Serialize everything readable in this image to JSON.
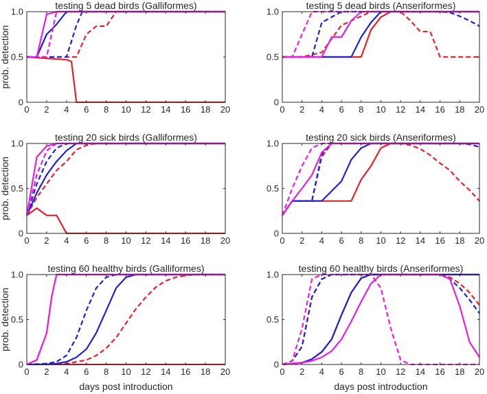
{
  "figure": {
    "xlabel": "days post introduction",
    "ylabel": "prob. detection"
  },
  "chart_data": [
    {
      "type": "line",
      "title": "testing 5 dead birds (Galliformes)",
      "xlabel": "",
      "ylabel": "prob. detection",
      "xlim": [
        0,
        20
      ],
      "ylim": [
        0,
        1
      ],
      "xticks": [
        "0",
        "2",
        "4",
        "6",
        "8",
        "10",
        "12",
        "14",
        "16",
        "18",
        "20"
      ],
      "yticks": [
        "0",
        "0.5",
        "1.0"
      ],
      "series": [
        {
          "color": "#e8202a",
          "dash": false,
          "x": [
            0,
            4,
            4.5,
            5,
            20
          ],
          "y": [
            0.5,
            0.47,
            0.45,
            0,
            0
          ]
        },
        {
          "color": "#e8202a",
          "dash": true,
          "x": [
            0,
            4,
            5,
            6,
            7,
            8,
            9,
            20
          ],
          "y": [
            0.5,
            0.5,
            0.5,
            0.75,
            0.84,
            0.84,
            1,
            1
          ]
        },
        {
          "color": "#1f1fd6",
          "dash": false,
          "x": [
            0,
            1,
            2,
            3,
            4,
            20
          ],
          "y": [
            0.5,
            0.5,
            0.75,
            0.86,
            1,
            1
          ]
        },
        {
          "color": "#1f1fd6",
          "dash": true,
          "x": [
            0,
            3,
            4,
            5,
            5.6,
            20
          ],
          "y": [
            0.5,
            0.5,
            0.5,
            0.85,
            1,
            1
          ]
        },
        {
          "color": "#e81ee0",
          "dash": false,
          "x": [
            0,
            1,
            2,
            3,
            20
          ],
          "y": [
            0.5,
            0.5,
            0.97,
            1,
            1
          ]
        },
        {
          "color": "#e81ee0",
          "dash": true,
          "x": [
            0,
            2,
            2.5,
            3,
            20
          ],
          "y": [
            0.5,
            0.5,
            0.75,
            1,
            1
          ]
        }
      ]
    },
    {
      "type": "line",
      "title": "testing 5 dead birds (Anseriformes)",
      "xlabel": "",
      "ylabel": "",
      "xlim": [
        0,
        20
      ],
      "ylim": [
        0,
        1
      ],
      "xticks": [
        "0",
        "2",
        "4",
        "6",
        "8",
        "10",
        "12",
        "14",
        "16",
        "18",
        "20"
      ],
      "yticks": [
        "0",
        "0.5",
        "1.0"
      ],
      "series": [
        {
          "color": "#e8202a",
          "dash": false,
          "x": [
            0,
            8,
            9,
            10,
            11,
            20
          ],
          "y": [
            0.5,
            0.5,
            0.8,
            0.94,
            1,
            1
          ]
        },
        {
          "color": "#e8202a",
          "dash": true,
          "x": [
            0,
            2,
            4,
            6,
            8,
            9,
            10,
            11,
            12,
            13,
            14,
            15,
            16,
            17,
            18,
            19,
            20
          ],
          "y": [
            0.5,
            0.5,
            0.55,
            0.85,
            0.95,
            1,
            1,
            1,
            1,
            0.9,
            0.78,
            0.78,
            0.5,
            0.5,
            0.5,
            0.5,
            0.5
          ]
        },
        {
          "color": "#1f1fd6",
          "dash": false,
          "x": [
            0,
            7,
            8,
            9,
            10,
            20
          ],
          "y": [
            0.5,
            0.5,
            0.72,
            0.88,
            1,
            1
          ]
        },
        {
          "color": "#1f1fd6",
          "dash": true,
          "x": [
            0,
            3,
            4,
            5,
            6,
            8,
            10,
            16,
            17,
            18,
            19,
            20
          ],
          "y": [
            0.5,
            0.5,
            0.88,
            0.94,
            1,
            1,
            1,
            1,
            0.99,
            0.95,
            0.9,
            0.84
          ]
        },
        {
          "color": "#e81ee0",
          "dash": false,
          "x": [
            0,
            4,
            5,
            6,
            7,
            8,
            9,
            20
          ],
          "y": [
            0.5,
            0.5,
            0.72,
            0.72,
            0.9,
            1,
            1,
            1
          ]
        },
        {
          "color": "#e81ee0",
          "dash": true,
          "x": [
            0,
            1,
            2,
            3,
            20
          ],
          "y": [
            0.5,
            0.5,
            0.75,
            1,
            1
          ]
        }
      ]
    },
    {
      "type": "line",
      "title": "testing 20 sick birds (Galliformes)",
      "xlabel": "",
      "ylabel": "prob. detection",
      "xlim": [
        0,
        20
      ],
      "ylim": [
        0,
        1
      ],
      "xticks": [
        "0",
        "2",
        "4",
        "6",
        "8",
        "10",
        "12",
        "14",
        "16",
        "18",
        "20"
      ],
      "yticks": [
        "0",
        "0.5",
        "1.0"
      ],
      "series": [
        {
          "color": "#e8202a",
          "dash": false,
          "x": [
            0,
            1,
            2,
            3,
            4,
            20
          ],
          "y": [
            0.2,
            0.28,
            0.2,
            0.2,
            0,
            0
          ]
        },
        {
          "color": "#e8202a",
          "dash": true,
          "x": [
            0,
            1,
            2,
            3,
            4,
            5,
            6,
            7,
            20
          ],
          "y": [
            0.2,
            0.4,
            0.55,
            0.7,
            0.8,
            0.93,
            0.98,
            1,
            1
          ]
        },
        {
          "color": "#1f1fd6",
          "dash": false,
          "x": [
            0,
            1,
            2,
            3,
            4,
            5,
            6,
            20
          ],
          "y": [
            0.2,
            0.45,
            0.65,
            0.8,
            0.92,
            1,
            1,
            1
          ]
        },
        {
          "color": "#1f1fd6",
          "dash": true,
          "x": [
            0,
            1,
            2,
            3,
            4,
            20
          ],
          "y": [
            0.2,
            0.55,
            0.8,
            0.95,
            1,
            1
          ]
        },
        {
          "color": "#e81ee0",
          "dash": false,
          "x": [
            0,
            1,
            2,
            3,
            20
          ],
          "y": [
            0.2,
            0.85,
            0.97,
            1,
            1
          ]
        },
        {
          "color": "#e81ee0",
          "dash": true,
          "x": [
            0,
            1,
            2,
            3,
            20
          ],
          "y": [
            0.2,
            0.65,
            0.92,
            1,
            1
          ]
        }
      ]
    },
    {
      "type": "line",
      "title": "testing 20 sick birds (Anseriformes)",
      "xlabel": "",
      "ylabel": "",
      "xlim": [
        0,
        20
      ],
      "ylim": [
        0,
        1
      ],
      "xticks": [
        "0",
        "2",
        "4",
        "6",
        "8",
        "10",
        "12",
        "14",
        "16",
        "18",
        "20"
      ],
      "yticks": [
        "0",
        "0.5",
        "1.0"
      ],
      "series": [
        {
          "color": "#e8202a",
          "dash": false,
          "x": [
            0,
            1,
            7,
            8,
            9,
            10,
            11,
            20
          ],
          "y": [
            0.2,
            0.36,
            0.36,
            0.6,
            0.75,
            0.95,
            1,
            1
          ]
        },
        {
          "color": "#e8202a",
          "dash": true,
          "x": [
            0,
            1,
            3,
            4,
            5,
            6,
            12,
            13,
            14,
            15,
            16,
            17,
            18,
            19,
            20
          ],
          "y": [
            0.2,
            0.36,
            0.36,
            0.85,
            1,
            1,
            1,
            0.98,
            0.94,
            0.87,
            0.78,
            0.7,
            0.58,
            0.48,
            0.36
          ]
        },
        {
          "color": "#1f1fd6",
          "dash": false,
          "x": [
            0,
            1,
            4,
            5,
            6,
            7,
            8,
            9,
            20
          ],
          "y": [
            0.2,
            0.36,
            0.36,
            0.47,
            0.58,
            0.82,
            0.95,
            1,
            1
          ]
        },
        {
          "color": "#1f1fd6",
          "dash": true,
          "x": [
            0,
            1,
            3,
            4,
            5,
            6,
            18,
            19,
            20
          ],
          "y": [
            0.2,
            0.36,
            0.36,
            0.88,
            1,
            1,
            1,
            0.99,
            0.96
          ]
        },
        {
          "color": "#e81ee0",
          "dash": false,
          "x": [
            0,
            1,
            2,
            3,
            4,
            5,
            20
          ],
          "y": [
            0.2,
            0.36,
            0.5,
            0.65,
            0.9,
            1,
            1
          ]
        },
        {
          "color": "#e81ee0",
          "dash": true,
          "x": [
            0,
            1,
            2,
            3,
            4,
            20
          ],
          "y": [
            0.2,
            0.5,
            0.75,
            0.95,
            1,
            1
          ]
        }
      ]
    },
    {
      "type": "line",
      "title": "testing 60 healthy birds (Galliformes)",
      "xlabel": "days post introduction",
      "ylabel": "prob. detection",
      "xlim": [
        0,
        20
      ],
      "ylim": [
        0,
        1
      ],
      "xticks": [
        "0",
        "2",
        "4",
        "6",
        "8",
        "10",
        "12",
        "14",
        "16",
        "18",
        "20"
      ],
      "yticks": [
        "0",
        "0.5",
        "1.0"
      ],
      "series": [
        {
          "color": "#e8202a",
          "dash": false,
          "x": [
            0,
            20
          ],
          "y": [
            0,
            0
          ]
        },
        {
          "color": "#e8202a",
          "dash": true,
          "x": [
            0,
            2,
            4,
            6,
            7,
            8,
            9,
            10,
            11,
            12,
            13,
            14,
            15,
            16,
            17,
            18,
            19,
            20
          ],
          "y": [
            0,
            0,
            0.01,
            0.05,
            0.1,
            0.18,
            0.3,
            0.46,
            0.62,
            0.75,
            0.86,
            0.93,
            0.97,
            0.99,
            1,
            1,
            1,
            1
          ]
        },
        {
          "color": "#1f1fd6",
          "dash": false,
          "x": [
            0,
            2,
            3,
            4,
            5,
            6,
            7,
            8,
            9,
            10,
            11,
            12,
            20
          ],
          "y": [
            0,
            0,
            0.01,
            0.03,
            0.08,
            0.17,
            0.35,
            0.6,
            0.85,
            0.97,
            1,
            1,
            1
          ]
        },
        {
          "color": "#1f1fd6",
          "dash": true,
          "x": [
            0,
            2,
            3,
            4,
            5,
            6,
            7,
            8,
            9,
            20
          ],
          "y": [
            0,
            0.01,
            0.03,
            0.1,
            0.3,
            0.6,
            0.85,
            0.97,
            1,
            1
          ]
        },
        {
          "color": "#e81ee0",
          "dash": false,
          "x": [
            0,
            1,
            2,
            2.5,
            3,
            20
          ],
          "y": [
            0,
            0.05,
            0.35,
            0.75,
            1,
            1
          ]
        },
        {
          "color": "#e81ee0",
          "dash": true,
          "x": [
            0,
            1,
            2,
            2.5,
            3,
            20
          ],
          "y": [
            0,
            0.05,
            0.35,
            0.75,
            1,
            1
          ]
        }
      ]
    },
    {
      "type": "line",
      "title": "testing 60 healthy birds (Anseriformes)",
      "xlabel": "days post introduction",
      "ylabel": "",
      "xlim": [
        0,
        20
      ],
      "ylim": [
        0,
        1
      ],
      "xticks": [
        "0",
        "2",
        "4",
        "6",
        "8",
        "10",
        "12",
        "14",
        "16",
        "18",
        "20"
      ],
      "yticks": [
        "0",
        "0.5",
        "1.0"
      ],
      "series": [
        {
          "color": "#e8202a",
          "dash": false,
          "x": [
            0,
            2,
            3,
            4,
            5,
            6,
            7,
            8,
            9,
            10,
            11,
            20
          ],
          "y": [
            0,
            0.02,
            0.06,
            0.14,
            0.28,
            0.55,
            0.8,
            0.96,
            1,
            1,
            1,
            1
          ]
        },
        {
          "color": "#e8202a",
          "dash": true,
          "x": [
            0,
            1,
            2,
            3,
            4,
            5,
            16,
            17,
            18,
            19,
            20
          ],
          "y": [
            0,
            0.04,
            0.2,
            0.75,
            0.95,
            1,
            1,
            0.97,
            0.9,
            0.8,
            0.66
          ]
        },
        {
          "color": "#1f1fd6",
          "dash": false,
          "x": [
            0,
            2,
            3,
            4,
            5,
            6,
            7,
            8,
            9,
            10,
            20
          ],
          "y": [
            0,
            0.02,
            0.06,
            0.14,
            0.28,
            0.55,
            0.8,
            0.96,
            1,
            1,
            1
          ]
        },
        {
          "color": "#1f1fd6",
          "dash": true,
          "x": [
            0,
            1,
            2,
            3,
            4,
            5,
            16,
            17,
            18,
            19,
            20
          ],
          "y": [
            0,
            0.04,
            0.2,
            0.75,
            0.95,
            1,
            1,
            0.95,
            0.85,
            0.72,
            0.57
          ]
        },
        {
          "color": "#e81ee0",
          "dash": false,
          "x": [
            0,
            2,
            3,
            4,
            5,
            6,
            7,
            8,
            9,
            10,
            11,
            16,
            17,
            18,
            19,
            20
          ],
          "y": [
            0,
            0.02,
            0.04,
            0.08,
            0.15,
            0.28,
            0.48,
            0.7,
            0.9,
            1,
            1,
            1,
            0.95,
            0.65,
            0.25,
            0.08
          ]
        },
        {
          "color": "#e81ee0",
          "dash": true,
          "x": [
            0,
            1,
            2,
            3,
            4,
            9,
            10,
            11,
            12,
            13,
            20
          ],
          "y": [
            0,
            0.04,
            0.4,
            0.95,
            1,
            1,
            0.85,
            0.4,
            0.05,
            0,
            0
          ]
        }
      ]
    }
  ]
}
